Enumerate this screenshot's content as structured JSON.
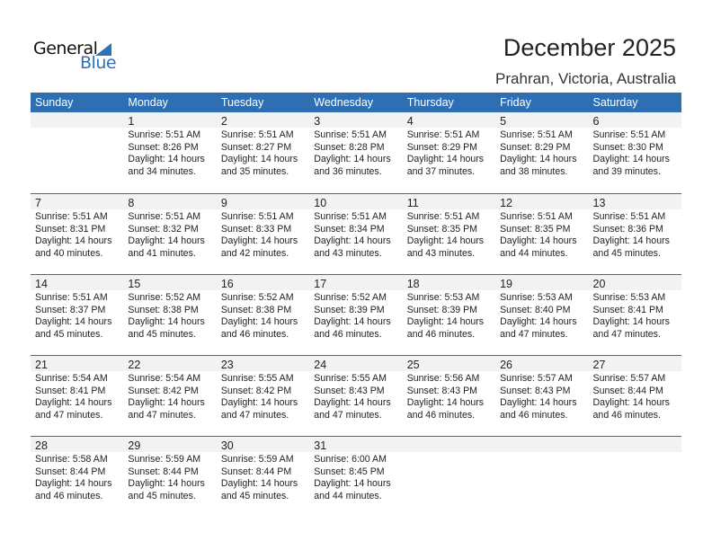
{
  "logo": {
    "general": "General",
    "blue": "Blue"
  },
  "title": "December 2025",
  "location": "Prahran, Victoria, Australia",
  "weekdays": [
    "Sunday",
    "Monday",
    "Tuesday",
    "Wednesday",
    "Thursday",
    "Friday",
    "Saturday"
  ],
  "weeks": [
    [
      null,
      {
        "d": "1",
        "rise": "Sunrise: 5:51 AM",
        "set": "Sunset: 8:26 PM",
        "day": "Daylight: 14 hours",
        "min": "and 34 minutes."
      },
      {
        "d": "2",
        "rise": "Sunrise: 5:51 AM",
        "set": "Sunset: 8:27 PM",
        "day": "Daylight: 14 hours",
        "min": "and 35 minutes."
      },
      {
        "d": "3",
        "rise": "Sunrise: 5:51 AM",
        "set": "Sunset: 8:28 PM",
        "day": "Daylight: 14 hours",
        "min": "and 36 minutes."
      },
      {
        "d": "4",
        "rise": "Sunrise: 5:51 AM",
        "set": "Sunset: 8:29 PM",
        "day": "Daylight: 14 hours",
        "min": "and 37 minutes."
      },
      {
        "d": "5",
        "rise": "Sunrise: 5:51 AM",
        "set": "Sunset: 8:29 PM",
        "day": "Daylight: 14 hours",
        "min": "and 38 minutes."
      },
      {
        "d": "6",
        "rise": "Sunrise: 5:51 AM",
        "set": "Sunset: 8:30 PM",
        "day": "Daylight: 14 hours",
        "min": "and 39 minutes."
      }
    ],
    [
      {
        "d": "7",
        "rise": "Sunrise: 5:51 AM",
        "set": "Sunset: 8:31 PM",
        "day": "Daylight: 14 hours",
        "min": "and 40 minutes."
      },
      {
        "d": "8",
        "rise": "Sunrise: 5:51 AM",
        "set": "Sunset: 8:32 PM",
        "day": "Daylight: 14 hours",
        "min": "and 41 minutes."
      },
      {
        "d": "9",
        "rise": "Sunrise: 5:51 AM",
        "set": "Sunset: 8:33 PM",
        "day": "Daylight: 14 hours",
        "min": "and 42 minutes."
      },
      {
        "d": "10",
        "rise": "Sunrise: 5:51 AM",
        "set": "Sunset: 8:34 PM",
        "day": "Daylight: 14 hours",
        "min": "and 43 minutes."
      },
      {
        "d": "11",
        "rise": "Sunrise: 5:51 AM",
        "set": "Sunset: 8:35 PM",
        "day": "Daylight: 14 hours",
        "min": "and 43 minutes."
      },
      {
        "d": "12",
        "rise": "Sunrise: 5:51 AM",
        "set": "Sunset: 8:35 PM",
        "day": "Daylight: 14 hours",
        "min": "and 44 minutes."
      },
      {
        "d": "13",
        "rise": "Sunrise: 5:51 AM",
        "set": "Sunset: 8:36 PM",
        "day": "Daylight: 14 hours",
        "min": "and 45 minutes."
      }
    ],
    [
      {
        "d": "14",
        "rise": "Sunrise: 5:51 AM",
        "set": "Sunset: 8:37 PM",
        "day": "Daylight: 14 hours",
        "min": "and 45 minutes."
      },
      {
        "d": "15",
        "rise": "Sunrise: 5:52 AM",
        "set": "Sunset: 8:38 PM",
        "day": "Daylight: 14 hours",
        "min": "and 45 minutes."
      },
      {
        "d": "16",
        "rise": "Sunrise: 5:52 AM",
        "set": "Sunset: 8:38 PM",
        "day": "Daylight: 14 hours",
        "min": "and 46 minutes."
      },
      {
        "d": "17",
        "rise": "Sunrise: 5:52 AM",
        "set": "Sunset: 8:39 PM",
        "day": "Daylight: 14 hours",
        "min": "and 46 minutes."
      },
      {
        "d": "18",
        "rise": "Sunrise: 5:53 AM",
        "set": "Sunset: 8:39 PM",
        "day": "Daylight: 14 hours",
        "min": "and 46 minutes."
      },
      {
        "d": "19",
        "rise": "Sunrise: 5:53 AM",
        "set": "Sunset: 8:40 PM",
        "day": "Daylight: 14 hours",
        "min": "and 47 minutes."
      },
      {
        "d": "20",
        "rise": "Sunrise: 5:53 AM",
        "set": "Sunset: 8:41 PM",
        "day": "Daylight: 14 hours",
        "min": "and 47 minutes."
      }
    ],
    [
      {
        "d": "21",
        "rise": "Sunrise: 5:54 AM",
        "set": "Sunset: 8:41 PM",
        "day": "Daylight: 14 hours",
        "min": "and 47 minutes."
      },
      {
        "d": "22",
        "rise": "Sunrise: 5:54 AM",
        "set": "Sunset: 8:42 PM",
        "day": "Daylight: 14 hours",
        "min": "and 47 minutes."
      },
      {
        "d": "23",
        "rise": "Sunrise: 5:55 AM",
        "set": "Sunset: 8:42 PM",
        "day": "Daylight: 14 hours",
        "min": "and 47 minutes."
      },
      {
        "d": "24",
        "rise": "Sunrise: 5:55 AM",
        "set": "Sunset: 8:43 PM",
        "day": "Daylight: 14 hours",
        "min": "and 47 minutes."
      },
      {
        "d": "25",
        "rise": "Sunrise: 5:56 AM",
        "set": "Sunset: 8:43 PM",
        "day": "Daylight: 14 hours",
        "min": "and 46 minutes."
      },
      {
        "d": "26",
        "rise": "Sunrise: 5:57 AM",
        "set": "Sunset: 8:43 PM",
        "day": "Daylight: 14 hours",
        "min": "and 46 minutes."
      },
      {
        "d": "27",
        "rise": "Sunrise: 5:57 AM",
        "set": "Sunset: 8:44 PM",
        "day": "Daylight: 14 hours",
        "min": "and 46 minutes."
      }
    ],
    [
      {
        "d": "28",
        "rise": "Sunrise: 5:58 AM",
        "set": "Sunset: 8:44 PM",
        "day": "Daylight: 14 hours",
        "min": "and 46 minutes."
      },
      {
        "d": "29",
        "rise": "Sunrise: 5:59 AM",
        "set": "Sunset: 8:44 PM",
        "day": "Daylight: 14 hours",
        "min": "and 45 minutes."
      },
      {
        "d": "30",
        "rise": "Sunrise: 5:59 AM",
        "set": "Sunset: 8:44 PM",
        "day": "Daylight: 14 hours",
        "min": "and 45 minutes."
      },
      {
        "d": "31",
        "rise": "Sunrise: 6:00 AM",
        "set": "Sunset: 8:45 PM",
        "day": "Daylight: 14 hours",
        "min": "and 44 minutes."
      },
      null,
      null,
      null
    ]
  ],
  "colors": {
    "header": "#2e6fb4",
    "band": "#f2f2f2"
  }
}
